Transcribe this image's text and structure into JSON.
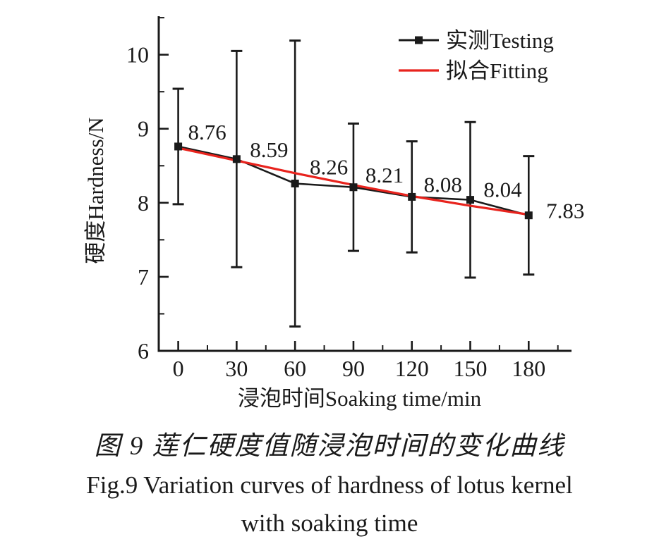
{
  "figure": {
    "caption_cn": "图 9  莲仁硬度值随浸泡时间的变化曲线",
    "caption_en_line1": "Fig.9    Variation curves of hardness of lotus kernel",
    "caption_en_line2": "with soaking time"
  },
  "chart_data": {
    "type": "line",
    "title": "",
    "xlabel": "浸泡时间Soaking time/min",
    "ylabel": "硬度Hardness/N",
    "x": [
      0,
      30,
      60,
      90,
      120,
      150,
      180
    ],
    "series": [
      {
        "name": "实测Testing",
        "color": "#1a1a1a",
        "marker": "square",
        "values": [
          8.76,
          8.59,
          8.26,
          8.21,
          8.08,
          8.04,
          7.83
        ],
        "error": [
          0.78,
          1.46,
          1.93,
          0.86,
          0.75,
          1.05,
          0.8
        ]
      },
      {
        "name": "拟合Fitting",
        "color": "#e8231d",
        "marker": "none",
        "values": [
          8.74,
          8.57,
          8.4,
          8.24,
          8.09,
          7.96,
          7.84
        ]
      }
    ],
    "point_labels": [
      "8.76",
      "8.59",
      "8.26",
      "8.21",
      "8.08",
      "8.04",
      "7.83"
    ],
    "x_ticks": [
      0,
      30,
      60,
      90,
      120,
      150,
      180
    ],
    "x_tick_labels": [
      "0",
      "30",
      "60",
      "90",
      "120",
      "150",
      "180"
    ],
    "y_ticks": [
      6,
      7,
      8,
      9,
      10
    ],
    "y_tick_labels": [
      "6",
      "7",
      "8",
      "9",
      "10"
    ],
    "x_minor_step": 15,
    "y_minor_step": 0.5,
    "xlim": [
      -10,
      202
    ],
    "ylim": [
      6,
      10.52
    ],
    "grid": false,
    "legend_position": "top-right",
    "axis_color": "#1a1a1a",
    "errorbar_color": "#1a1a1a"
  }
}
